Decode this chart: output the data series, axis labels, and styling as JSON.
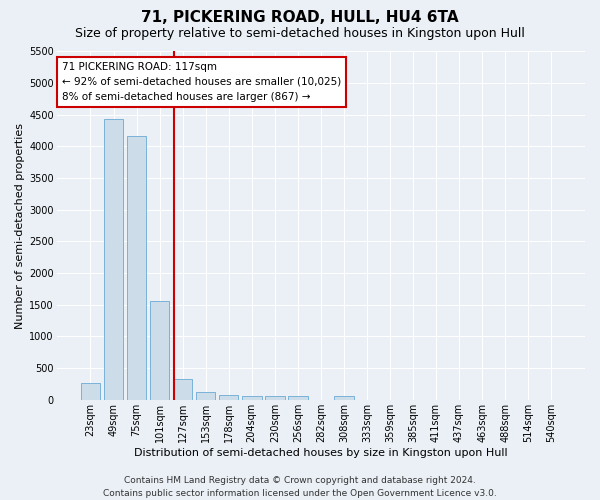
{
  "title": "71, PICKERING ROAD, HULL, HU4 6TA",
  "subtitle": "Size of property relative to semi-detached houses in Kingston upon Hull",
  "xlabel": "Distribution of semi-detached houses by size in Kingston upon Hull",
  "ylabel": "Number of semi-detached properties",
  "categories": [
    "23sqm",
    "49sqm",
    "75sqm",
    "101sqm",
    "127sqm",
    "153sqm",
    "178sqm",
    "204sqm",
    "230sqm",
    "256sqm",
    "282sqm",
    "308sqm",
    "333sqm",
    "359sqm",
    "385sqm",
    "411sqm",
    "437sqm",
    "463sqm",
    "488sqm",
    "514sqm",
    "540sqm"
  ],
  "values": [
    270,
    4430,
    4170,
    1565,
    330,
    120,
    75,
    65,
    55,
    55,
    0,
    55,
    0,
    0,
    0,
    0,
    0,
    0,
    0,
    0,
    0
  ],
  "bar_color": "#ccdce8",
  "bar_edge_color": "#6aaad4",
  "vline_color": "#cc0000",
  "annotation_text": "71 PICKERING ROAD: 117sqm\n← 92% of semi-detached houses are smaller (10,025)\n8% of semi-detached houses are larger (867) →",
  "annotation_box_color": "#ffffff",
  "annotation_box_edge": "#cc0000",
  "ylim": [
    0,
    5500
  ],
  "yticks": [
    0,
    500,
    1000,
    1500,
    2000,
    2500,
    3000,
    3500,
    4000,
    4500,
    5000,
    5500
  ],
  "footer_line1": "Contains HM Land Registry data © Crown copyright and database right 2024.",
  "footer_line2": "Contains public sector information licensed under the Open Government Licence v3.0.",
  "bg_color": "#eaf0f6",
  "plot_bg_color": "#eaf0f6",
  "grid_color": "#ffffff",
  "title_fontsize": 11,
  "subtitle_fontsize": 9,
  "label_fontsize": 8,
  "tick_fontsize": 7,
  "footer_fontsize": 6.5,
  "annotation_fontsize": 7.5
}
